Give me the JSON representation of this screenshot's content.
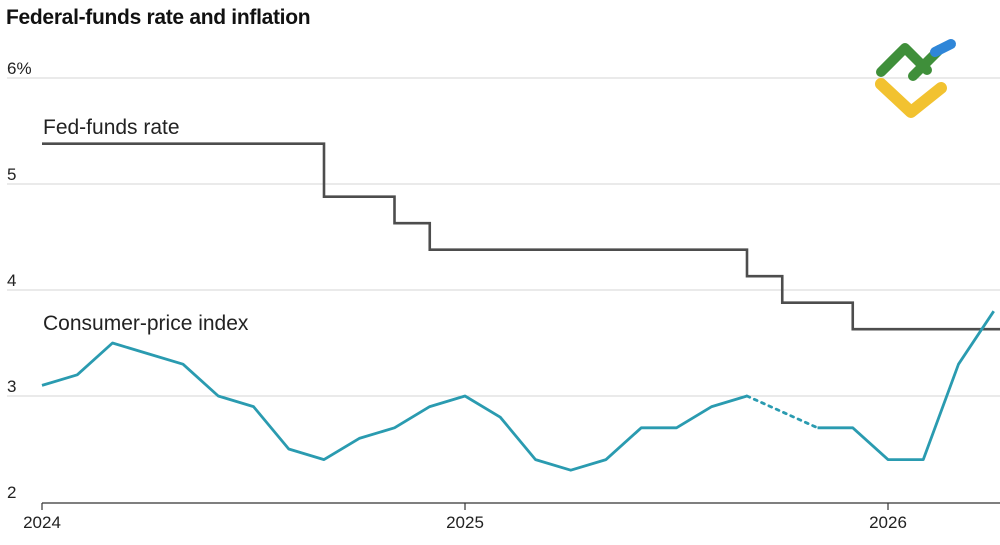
{
  "chart_data": {
    "type": "line",
    "title": "Federal-funds rate and inflation",
    "xlabel": "",
    "ylabel": "",
    "ylim": [
      2,
      6
    ],
    "xlim": [
      "2024-01",
      "2026-03"
    ],
    "grid": true,
    "y_ticks": [
      "6%",
      "5",
      "4",
      "3",
      "2"
    ],
    "x_ticks": [
      "2024",
      "2025",
      "2026"
    ],
    "series": [
      {
        "name": "Fed-funds rate",
        "color": "#4d4d4d",
        "style": "step",
        "points": [
          [
            "2024-01",
            5.38
          ],
          [
            "2024-09",
            5.38
          ],
          [
            "2024-09",
            4.88
          ],
          [
            "2024-11",
            4.88
          ],
          [
            "2024-11",
            4.63
          ],
          [
            "2024-12",
            4.63
          ],
          [
            "2024-12",
            4.38
          ],
          [
            "2025-09",
            4.38
          ],
          [
            "2025-09",
            4.13
          ],
          [
            "2025-10",
            4.13
          ],
          [
            "2025-10",
            3.88
          ],
          [
            "2025-12",
            3.88
          ],
          [
            "2025-12",
            3.63
          ],
          [
            "2026-03",
            3.63
          ]
        ]
      },
      {
        "name": "Consumer-price index",
        "color": "#2a9bb0",
        "style": "line",
        "points": [
          [
            "2024-01",
            3.1
          ],
          [
            "2024-02",
            3.2
          ],
          [
            "2024-03",
            3.5
          ],
          [
            "2024-04",
            3.4
          ],
          [
            "2024-05",
            3.3
          ],
          [
            "2024-06",
            3.0
          ],
          [
            "2024-07",
            2.9
          ],
          [
            "2024-08",
            2.5
          ],
          [
            "2024-09",
            2.4
          ],
          [
            "2024-10",
            2.6
          ],
          [
            "2024-11",
            2.7
          ],
          [
            "2024-12",
            2.9
          ],
          [
            "2025-01",
            3.0
          ],
          [
            "2025-02",
            2.8
          ],
          [
            "2025-03",
            2.4
          ],
          [
            "2025-04",
            2.3
          ],
          [
            "2025-05",
            2.4
          ],
          [
            "2025-06",
            2.7
          ],
          [
            "2025-07",
            2.7
          ],
          [
            "2025-08",
            2.9
          ],
          [
            "2025-09",
            3.0
          ],
          [
            "2025-11",
            2.7
          ],
          [
            "2025-12",
            2.7
          ],
          [
            "2026-01",
            2.4
          ],
          [
            "2026-02",
            2.4
          ],
          [
            "2026-03",
            3.3
          ],
          [
            "2026-04",
            3.8
          ]
        ],
        "gap": [
          "2025-09",
          "2025-11"
        ]
      }
    ]
  },
  "logo": {
    "green": "#3f8f3a",
    "blue": "#2f86d8",
    "yellow": "#f2c230"
  }
}
